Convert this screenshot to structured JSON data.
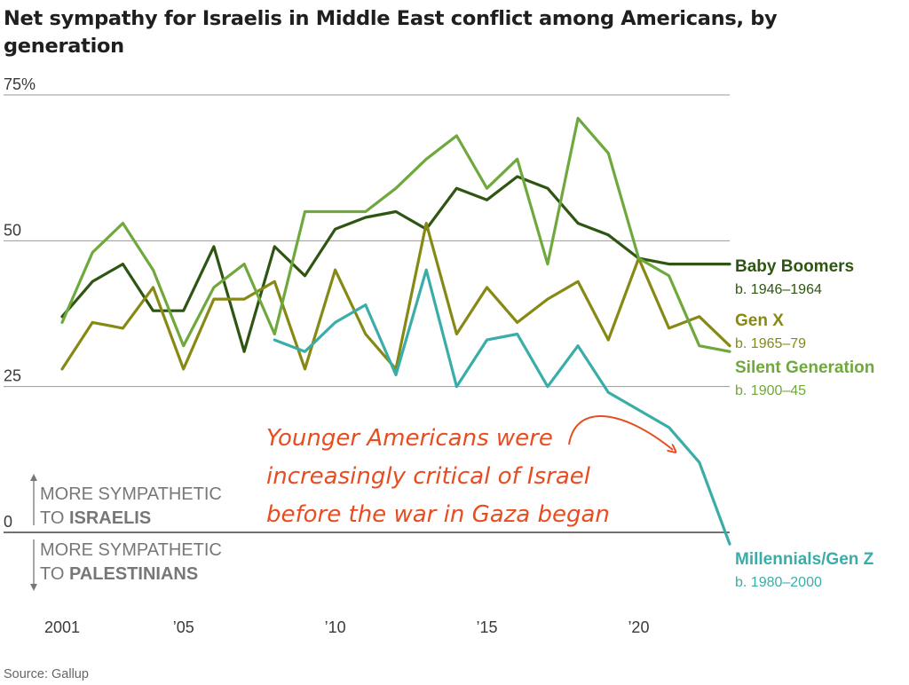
{
  "chart_data": {
    "type": "line",
    "title": "Net sympathy for Israelis in Middle East conflict among Americans, by generation",
    "source": "Source: Gallup",
    "ylim": [
      0,
      75
    ],
    "xlim": [
      2001,
      2023
    ],
    "yticks": [
      {
        "value": 0,
        "label": "0"
      },
      {
        "value": 25,
        "label": "25"
      },
      {
        "value": 50,
        "label": "50"
      },
      {
        "value": 75,
        "label": "75%"
      }
    ],
    "xticks": [
      {
        "value": 2001,
        "label": "2001"
      },
      {
        "value": 2005,
        "label": "’05"
      },
      {
        "value": 2010,
        "label": "’10"
      },
      {
        "value": 2015,
        "label": "’15"
      },
      {
        "value": 2020,
        "label": "’20"
      }
    ],
    "direction_labels": {
      "up_line1": "MORE SYMPATHETIC",
      "up_line2_prefix": "TO ",
      "up_line2_bold": "ISRAELIS",
      "down_line1": "MORE SYMPATHETIC",
      "down_line2_prefix": "TO ",
      "down_line2_bold": "PALESTINIANS"
    },
    "annotation": {
      "lines": [
        "Younger Americans were",
        "increasingly critical of Israel",
        "before the war in Gaza began"
      ],
      "color": "#e84d22"
    },
    "series": [
      {
        "name": "Baby Boomers",
        "subtitle": "b. 1946–1964",
        "color": "#2f5513",
        "x": [
          2001,
          2002,
          2003,
          2004,
          2005,
          2006,
          2007,
          2008,
          2009,
          2010,
          2011,
          2012,
          2013,
          2014,
          2015,
          2016,
          2017,
          2018,
          2019,
          2020,
          2021,
          2022,
          2023
        ],
        "y": [
          37,
          43,
          46,
          38,
          38,
          49,
          31,
          49,
          44,
          52,
          54,
          55,
          52,
          59,
          57,
          61,
          59,
          53,
          51,
          47,
          46,
          46,
          46
        ]
      },
      {
        "name": "Gen X",
        "subtitle": "b. 1965–79",
        "color": "#868a14",
        "x": [
          2001,
          2002,
          2003,
          2004,
          2005,
          2006,
          2007,
          2008,
          2009,
          2010,
          2011,
          2012,
          2013,
          2014,
          2015,
          2016,
          2017,
          2018,
          2019,
          2020,
          2021,
          2022,
          2023
        ],
        "y": [
          28,
          36,
          35,
          42,
          28,
          40,
          40,
          43,
          28,
          45,
          34,
          28,
          53,
          34,
          42,
          36,
          40,
          43,
          33,
          47,
          35,
          37,
          32
        ]
      },
      {
        "name": "Silent Generation",
        "subtitle": "b. 1900–45",
        "color": "#6fa83d",
        "x": [
          2001,
          2002,
          2003,
          2004,
          2005,
          2006,
          2007,
          2008,
          2009,
          2010,
          2011,
          2012,
          2013,
          2014,
          2015,
          2016,
          2017,
          2018,
          2019,
          2020,
          2021,
          2022,
          2023
        ],
        "y": [
          36,
          48,
          53,
          45,
          32,
          42,
          46,
          34,
          55,
          55,
          55,
          59,
          64,
          68,
          59,
          64,
          46,
          71,
          65,
          47,
          44,
          32,
          31
        ]
      },
      {
        "name": "Millennials/Gen Z",
        "subtitle": "b. 1980–2000",
        "color": "#3bada8",
        "x": [
          2008,
          2009,
          2010,
          2011,
          2012,
          2013,
          2014,
          2015,
          2016,
          2017,
          2018,
          2019,
          2020,
          2021,
          2022,
          2023
        ],
        "y": [
          33,
          31,
          36,
          39,
          27,
          45,
          25,
          33,
          34,
          25,
          32,
          24,
          21,
          18,
          12,
          -2
        ]
      }
    ]
  }
}
